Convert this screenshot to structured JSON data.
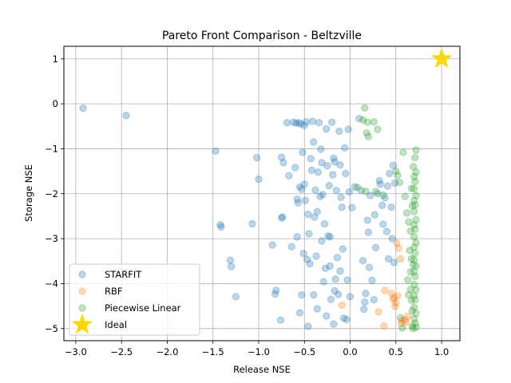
{
  "chart_data": {
    "type": "scatter",
    "title": "Pareto Front Comparison - Beltzville",
    "xlabel": "Release NSE",
    "ylabel": "Storage NSE",
    "xlim": [
      -3.13,
      1.2
    ],
    "ylim": [
      -5.27,
      1.28
    ],
    "xticks": [
      -3.0,
      -2.5,
      -2.0,
      -1.5,
      -1.0,
      -0.5,
      0.0,
      0.5,
      1.0
    ],
    "xtick_labels": [
      "−3.0",
      "−2.5",
      "−2.0",
      "−1.5",
      "−1.0",
      "−0.5",
      "0.0",
      "0.5",
      "1.0"
    ],
    "yticks": [
      1,
      0,
      -1,
      -2,
      -3,
      -4,
      -5
    ],
    "ytick_labels": [
      "1",
      "0",
      "−1",
      "−2",
      "−3",
      "−4",
      "−5"
    ],
    "grid": true,
    "legend_position": "lower-left",
    "series": [
      {
        "name": "STARFIT",
        "color": "#1f77b4",
        "marker": "circle",
        "points": [
          [
            -2.92,
            -0.1
          ],
          [
            -2.45,
            -0.26
          ],
          [
            -1.47,
            -1.05
          ],
          [
            -1.42,
            -2.69
          ],
          [
            -1.41,
            -2.74
          ],
          [
            -1.31,
            -3.48
          ],
          [
            -1.3,
            -3.62
          ],
          [
            -1.25,
            -4.29
          ],
          [
            -1.07,
            -2.67
          ],
          [
            -1.02,
            -1.2
          ],
          [
            -1.0,
            -1.68
          ],
          [
            -0.85,
            -3.14
          ],
          [
            -0.82,
            -4.23
          ],
          [
            -0.81,
            -4.15
          ],
          [
            -0.76,
            -4.81
          ],
          [
            -0.75,
            -2.54
          ],
          [
            -0.74,
            -2.52
          ],
          [
            -0.75,
            -1.19
          ],
          [
            -0.73,
            -1.31
          ],
          [
            -0.69,
            -0.42
          ],
          [
            -0.67,
            -1.6
          ],
          [
            -0.64,
            -3.18
          ],
          [
            -0.62,
            -0.41
          ],
          [
            -0.6,
            -1.42
          ],
          [
            -0.59,
            -0.43
          ],
          [
            -0.58,
            -2.12
          ],
          [
            -0.57,
            -2.2
          ],
          [
            -0.56,
            -0.42
          ],
          [
            -0.55,
            -1.85
          ],
          [
            -0.54,
            -0.45
          ],
          [
            -0.52,
            -1.08
          ],
          [
            -0.5,
            -1.79
          ],
          [
            -0.5,
            -0.48
          ],
          [
            -0.48,
            -0.4
          ],
          [
            -0.46,
            -2.46
          ],
          [
            -0.45,
            -2.89
          ],
          [
            -0.43,
            -1.22
          ],
          [
            -0.42,
            -1.48
          ],
          [
            -0.41,
            -0.39
          ],
          [
            -0.4,
            -0.85
          ],
          [
            -0.38,
            -1.92
          ],
          [
            -0.36,
            -2.4
          ],
          [
            -0.35,
            -1.52
          ],
          [
            -0.34,
            -0.42
          ],
          [
            -0.32,
            -1.01
          ],
          [
            -0.31,
            -1.31
          ],
          [
            -0.3,
            -2.02
          ],
          [
            -0.28,
            -2.67
          ],
          [
            -0.27,
            -3.66
          ],
          [
            -0.26,
            -0.56
          ],
          [
            -0.25,
            -1.38
          ],
          [
            -0.23,
            -1.82
          ],
          [
            -0.22,
            -2.96
          ],
          [
            -0.21,
            -4.35
          ],
          [
            -0.2,
            -0.41
          ],
          [
            -0.19,
            -1.58
          ],
          [
            -0.18,
            -1.21
          ],
          [
            -0.17,
            -1.29
          ],
          [
            -0.15,
            -1.93
          ],
          [
            -0.14,
            -3.42
          ],
          [
            -0.13,
            -4.24
          ],
          [
            -0.12,
            -0.61
          ],
          [
            -0.11,
            -1.36
          ],
          [
            -0.1,
            -2.08
          ],
          [
            -0.09,
            -2.3
          ],
          [
            -0.08,
            -3.23
          ],
          [
            -0.06,
            -0.98
          ],
          [
            -0.05,
            -1.55
          ],
          [
            -0.04,
            -4.8
          ],
          [
            -0.02,
            -0.57
          ],
          [
            0.0,
            -4.29
          ],
          [
            0.02,
            -2.31
          ],
          [
            0.05,
            -1.85
          ],
          [
            0.1,
            -0.33
          ],
          [
            0.12,
            -1.93
          ],
          [
            0.14,
            -3.49
          ],
          [
            0.15,
            -4.57
          ],
          [
            0.16,
            -4.41
          ],
          [
            0.17,
            -4.22
          ],
          [
            0.19,
            -2.59
          ],
          [
            0.2,
            -2.86
          ],
          [
            0.21,
            -3.64
          ],
          [
            0.22,
            -2.04
          ],
          [
            0.24,
            -3.93
          ],
          [
            0.26,
            -4.36
          ],
          [
            0.27,
            -2.47
          ],
          [
            0.28,
            -3.2
          ],
          [
            0.3,
            -2.0
          ],
          [
            0.32,
            -1.71
          ],
          [
            0.33,
            -1.79
          ],
          [
            0.35,
            -2.26
          ],
          [
            0.36,
            -2.68
          ],
          [
            0.38,
            -2.09
          ],
          [
            0.4,
            -2.84
          ],
          [
            0.41,
            -1.83
          ],
          [
            0.42,
            -3.45
          ],
          [
            0.43,
            -1.55
          ],
          [
            0.45,
            -2.3
          ],
          [
            0.46,
            -3.0
          ],
          [
            0.47,
            -1.37
          ],
          [
            0.48,
            -3.53
          ],
          [
            0.49,
            -1.76
          ],
          [
            -0.53,
            -1.9
          ],
          [
            -0.49,
            -2.15
          ],
          [
            -0.47,
            -3.46
          ],
          [
            -0.44,
            -3.56
          ],
          [
            -0.39,
            -2.52
          ],
          [
            -0.37,
            -3.39
          ],
          [
            -0.33,
            -2.06
          ],
          [
            -0.29,
            -3.96
          ],
          [
            -0.24,
            -2.94
          ],
          [
            -0.16,
            -3.9
          ],
          [
            -0.07,
            -4.77
          ],
          [
            -0.03,
            -3.92
          ],
          [
            -0.01,
            -1.96
          ],
          [
            -0.58,
            -2.96
          ],
          [
            -0.53,
            -4.25
          ],
          [
            -0.51,
            -3.33
          ],
          [
            -0.46,
            -4.95
          ],
          [
            -0.4,
            -4.25
          ],
          [
            -0.36,
            -4.56
          ],
          [
            -0.31,
            -3.05
          ],
          [
            -0.26,
            -4.72
          ],
          [
            -0.22,
            -3.61
          ],
          [
            -0.17,
            -4.16
          ],
          [
            -0.11,
            -3.72
          ],
          [
            -0.55,
            -4.65
          ],
          [
            -0.18,
            -4.9
          ]
        ]
      },
      {
        "name": "RBF",
        "color": "#ff7f0e",
        "marker": "circle",
        "points": [
          [
            -0.09,
            -4.48
          ],
          [
            0.38,
            -4.15
          ],
          [
            0.45,
            -4.22
          ],
          [
            0.47,
            -4.35
          ],
          [
            0.48,
            -4.31
          ],
          [
            0.5,
            -4.43
          ],
          [
            0.52,
            -4.27
          ],
          [
            0.51,
            -3.1
          ],
          [
            0.53,
            -3.21
          ],
          [
            0.55,
            -3.45
          ],
          [
            0.6,
            -4.8
          ],
          [
            0.61,
            -4.86
          ],
          [
            0.63,
            -4.72
          ],
          [
            0.57,
            -4.82
          ],
          [
            0.31,
            -4.63
          ],
          [
            0.37,
            -4.94
          ],
          [
            0.56,
            -4.88
          ],
          [
            0.49,
            -4.51
          ]
        ]
      },
      {
        "name": "Piecewise Linear",
        "color": "#2ca02c",
        "marker": "circle",
        "points": [
          [
            0.16,
            -0.09
          ],
          [
            0.14,
            -0.36
          ],
          [
            0.19,
            -0.41
          ],
          [
            0.26,
            -0.4
          ],
          [
            0.18,
            -0.65
          ],
          [
            0.2,
            -0.73
          ],
          [
            0.3,
            -0.57
          ],
          [
            0.08,
            -1.86
          ],
          [
            0.17,
            -1.95
          ],
          [
            0.28,
            -1.95
          ],
          [
            0.36,
            -2.03
          ],
          [
            0.5,
            -1.5
          ],
          [
            0.52,
            -1.59
          ],
          [
            0.54,
            -1.75
          ],
          [
            0.58,
            -1.08
          ],
          [
            0.6,
            -2.06
          ],
          [
            0.62,
            -2.43
          ],
          [
            0.64,
            -2.63
          ],
          [
            0.66,
            -2.83
          ],
          [
            0.65,
            -3.26
          ],
          [
            0.67,
            -3.45
          ],
          [
            0.66,
            -3.74
          ],
          [
            0.66,
            -4.13
          ],
          [
            0.67,
            -4.37
          ],
          [
            0.68,
            -4.6
          ],
          [
            0.68,
            -4.95
          ],
          [
            0.69,
            -5.0
          ],
          [
            0.69,
            -1.4
          ],
          [
            0.7,
            -1.62
          ],
          [
            0.7,
            -1.89
          ],
          [
            0.7,
            -2.15
          ],
          [
            0.7,
            -2.4
          ],
          [
            0.7,
            -2.69
          ],
          [
            0.7,
            -2.96
          ],
          [
            0.7,
            -3.19
          ],
          [
            0.7,
            -3.47
          ],
          [
            0.7,
            -3.73
          ],
          [
            0.7,
            -4.02
          ],
          [
            0.7,
            -4.27
          ],
          [
            0.7,
            -4.53
          ],
          [
            0.7,
            -4.78
          ],
          [
            0.71,
            -1.2
          ],
          [
            0.71,
            -1.73
          ],
          [
            0.71,
            -2.25
          ],
          [
            0.71,
            -2.79
          ],
          [
            0.71,
            -3.32
          ],
          [
            0.71,
            -3.84
          ],
          [
            0.71,
            -4.36
          ],
          [
            0.71,
            -4.88
          ],
          [
            0.72,
            -1.03
          ],
          [
            0.72,
            -1.52
          ],
          [
            0.72,
            -2.04
          ],
          [
            0.72,
            -2.58
          ],
          [
            0.72,
            -3.09
          ],
          [
            0.72,
            -3.61
          ],
          [
            0.72,
            -4.14
          ],
          [
            0.72,
            -4.66
          ],
          [
            0.72,
            -4.97
          ],
          [
            0.55,
            -4.76
          ],
          [
            0.57,
            -4.99
          ],
          [
            0.69,
            -3.58
          ],
          [
            0.68,
            -2.27
          ],
          [
            0.67,
            -1.88
          ],
          [
            0.64,
            -4.25
          ],
          [
            0.63,
            -3.92
          ]
        ]
      },
      {
        "name": "Ideal",
        "color": "#ffd700",
        "marker": "star",
        "points": [
          [
            1.0,
            1.0
          ]
        ]
      }
    ]
  }
}
